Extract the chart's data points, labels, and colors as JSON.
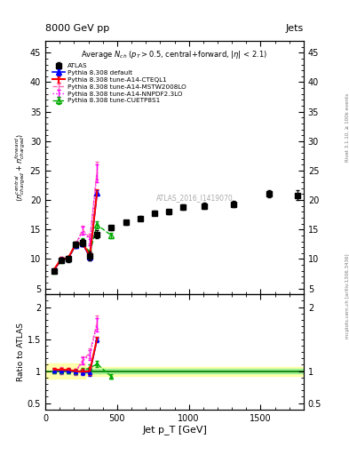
{
  "title_top": "8000 GeV pp",
  "title_right": "Jets",
  "watermark": "ATLAS_2016_I1419070",
  "right_label_top": "Rivet 3.1.10, ≥ 100k events",
  "right_label_bottom": "mcplots.cern.ch [arXiv:1306.3436]",
  "ylabel_ratio": "Ratio to ATLAS",
  "xlabel": "Jet p_T [GeV]",
  "xlim": [
    0,
    1800
  ],
  "ylim_main": [
    4,
    47
  ],
  "ylim_ratio": [
    0.4,
    2.2
  ],
  "yticks_main": [
    5,
    10,
    15,
    20,
    25,
    30,
    35,
    40,
    45
  ],
  "yticks_ratio": [
    0.5,
    1.0,
    1.5,
    2.0
  ],
  "atlas_x": [
    60,
    110,
    160,
    210,
    260,
    310,
    360,
    460,
    560,
    660,
    760,
    860,
    960,
    1110,
    1310,
    1560,
    1760
  ],
  "atlas_y": [
    8.0,
    9.8,
    10.0,
    12.5,
    12.8,
    10.5,
    14.2,
    15.3,
    16.2,
    16.9,
    17.8,
    18.0,
    18.8,
    19.0,
    19.3,
    21.0,
    20.8
  ],
  "atlas_yerr": [
    0.3,
    0.4,
    0.5,
    0.5,
    0.6,
    0.7,
    0.7,
    0.4,
    0.4,
    0.4,
    0.4,
    0.4,
    0.4,
    0.5,
    0.5,
    0.6,
    0.8
  ],
  "pythia_x": [
    60,
    110,
    160,
    210,
    260,
    310,
    360
  ],
  "default_y": [
    8.1,
    9.9,
    10.1,
    12.4,
    12.6,
    10.3,
    21.2
  ],
  "default_yerr": [
    0.2,
    0.3,
    0.3,
    0.4,
    0.5,
    0.6,
    0.5
  ],
  "cteql1_y": [
    8.2,
    10.0,
    10.2,
    12.5,
    12.7,
    10.5,
    21.4
  ],
  "cteql1_yerr": [
    0.2,
    0.3,
    0.3,
    0.4,
    0.5,
    0.6,
    0.5
  ],
  "mstw_y": [
    8.1,
    10.0,
    10.1,
    12.4,
    15.0,
    13.5,
    25.0
  ],
  "mstw_yerr": [
    0.3,
    0.4,
    0.4,
    0.5,
    0.7,
    0.8,
    1.5
  ],
  "nnpdf_y": [
    8.0,
    9.8,
    10.0,
    12.3,
    14.8,
    13.2,
    24.5
  ],
  "nnpdf_yerr": [
    0.3,
    0.4,
    0.4,
    0.5,
    0.7,
    0.8,
    1.5
  ],
  "cuetp_x": [
    60,
    110,
    160,
    210,
    260,
    310,
    360,
    460
  ],
  "cuetp_y": [
    8.0,
    9.8,
    10.0,
    12.3,
    13.0,
    11.0,
    15.8,
    14.0
  ],
  "cuetp_yerr": [
    0.2,
    0.3,
    0.3,
    0.4,
    0.5,
    0.6,
    0.6,
    0.5
  ],
  "colors": {
    "atlas": "#000000",
    "default": "#0000ff",
    "cteql1": "#ff0000",
    "mstw": "#ff69b4",
    "nnpdf": "#ff00ff",
    "cuetp": "#00aa00",
    "ratio_line": "#007700",
    "band_green": "#90ee90",
    "band_yellow": "#ffff99"
  }
}
